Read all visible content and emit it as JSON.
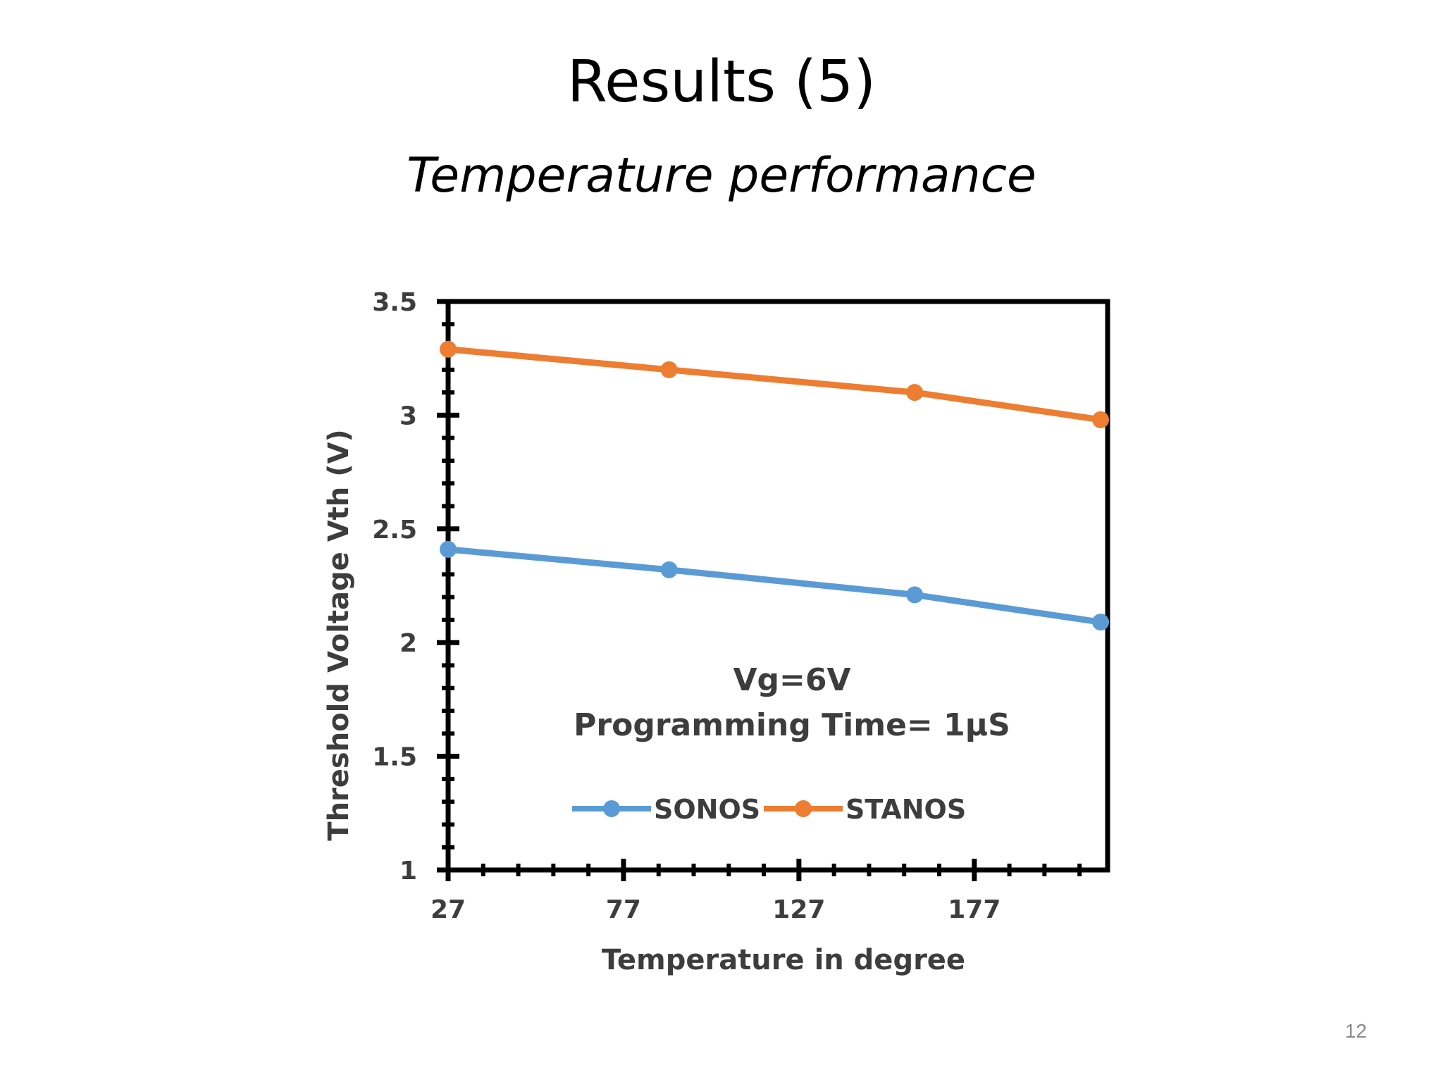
{
  "slide": {
    "title": "Results (5)",
    "subtitle": "Temperature performance",
    "page_number": "12"
  },
  "chart_data": {
    "type": "line",
    "x": [
      27,
      90,
      160,
      213
    ],
    "series": [
      {
        "name": "SONOS",
        "values": [
          2.41,
          2.32,
          2.21,
          2.09
        ],
        "color": "#5B9BD5"
      },
      {
        "name": "STANOS",
        "values": [
          3.29,
          3.2,
          3.1,
          2.98
        ],
        "color": "#ED7D31"
      }
    ],
    "xlabel": "Temperature in degree",
    "ylabel": "Threshold Voltage Vth (V)",
    "xlim": [
      27,
      215
    ],
    "ylim": [
      1,
      3.5
    ],
    "x_ticks": [
      27,
      77,
      127,
      177
    ],
    "y_ticks": [
      1,
      1.5,
      2,
      2.5,
      3,
      3.5
    ],
    "y_tick_labels": [
      "1",
      "1.5",
      "2",
      "2.5",
      "3",
      "3.5"
    ],
    "annotation": [
      "Vg=6V",
      "Programming Time= 1µS"
    ],
    "legend_position": "bottom-center",
    "grid": false
  }
}
